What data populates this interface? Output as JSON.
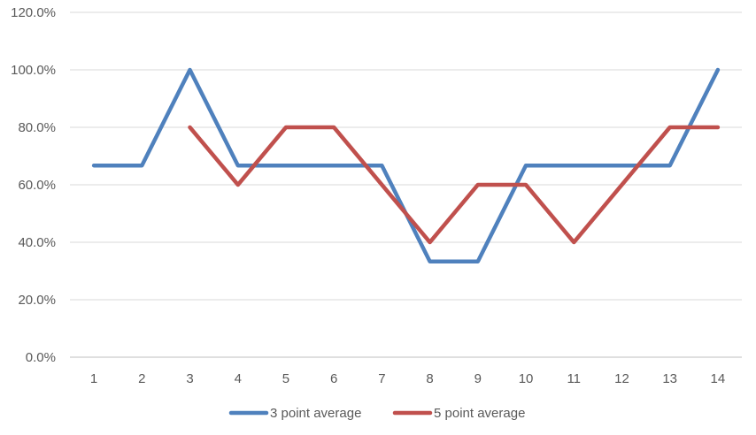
{
  "chart_data": {
    "type": "line",
    "title": "",
    "xlabel": "",
    "ylabel": "",
    "x": [
      1,
      2,
      3,
      4,
      5,
      6,
      7,
      8,
      9,
      10,
      11,
      12,
      13,
      14
    ],
    "ylim": [
      0,
      120
    ],
    "y_ticks": [
      "0.0%",
      "20.0%",
      "40.0%",
      "60.0%",
      "80.0%",
      "100.0%",
      "120.0%"
    ],
    "x_ticks": [
      "1",
      "2",
      "3",
      "4",
      "5",
      "6",
      "7",
      "8",
      "9",
      "10",
      "11",
      "12",
      "13",
      "14"
    ],
    "grid": "horizontal",
    "legend": "bottom",
    "series": [
      {
        "name": "3 point average",
        "color": "#4f81bd",
        "values": [
          66.7,
          66.7,
          100.0,
          66.7,
          66.7,
          66.7,
          66.7,
          33.3,
          33.3,
          66.7,
          66.7,
          66.7,
          66.7,
          100.0
        ]
      },
      {
        "name": "5 point average",
        "color": "#c0504d",
        "values": [
          null,
          null,
          80.0,
          60.0,
          80.0,
          80.0,
          60.0,
          40.0,
          60.0,
          60.0,
          40.0,
          60.0,
          80.0,
          80.0
        ]
      }
    ]
  }
}
